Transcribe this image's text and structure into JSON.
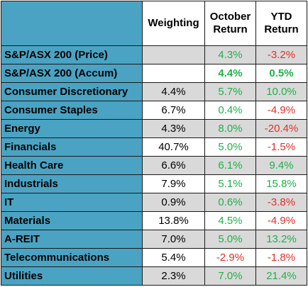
{
  "columns": {
    "weighting": "Weighting",
    "october": "October Return",
    "ytd": "YTD Return"
  },
  "colors": {
    "header_fill": "#4aa3c3",
    "positive": "#1fb14a",
    "negative": "#e0312b",
    "shade": "#d9d9d9"
  },
  "rows": [
    {
      "name": "S&P/ASX 200 (Price)",
      "weighting": "",
      "october": "4.3%",
      "ytd": "-3.2%"
    },
    {
      "name": "S&P/ASX 200 (Accum)",
      "weighting": "",
      "october": "4.4%",
      "ytd": "0.5%"
    },
    {
      "name": "Consumer Discretionary",
      "weighting": "4.4%",
      "october": "5.7%",
      "ytd": "10.0%"
    },
    {
      "name": "Consumer Staples",
      "weighting": "6.7%",
      "october": "0.4%",
      "ytd": "-4.9%"
    },
    {
      "name": "Energy",
      "weighting": "4.3%",
      "october": "8.0%",
      "ytd": "-20.4%"
    },
    {
      "name": "Financials",
      "weighting": "40.7%",
      "october": "5.0%",
      "ytd": "-1.5%"
    },
    {
      "name": "Health Care",
      "weighting": "6.6%",
      "october": "6.1%",
      "ytd": "9.4%"
    },
    {
      "name": "Industrials",
      "weighting": "7.9%",
      "october": "5.1%",
      "ytd": "15.8%"
    },
    {
      "name": "IT",
      "weighting": "0.9%",
      "october": "0.6%",
      "ytd": "-3.8%"
    },
    {
      "name": "Materials",
      "weighting": "13.8%",
      "october": "4.5%",
      "ytd": "-4.9%"
    },
    {
      "name": "A-REIT",
      "weighting": "7.0%",
      "october": "5.0%",
      "ytd": "13.2%"
    },
    {
      "name": "Telecommunications",
      "weighting": "5.4%",
      "october": "-2.9%",
      "ytd": "-1.8%"
    },
    {
      "name": "Utilities",
      "weighting": "2.3%",
      "october": "7.0%",
      "ytd": "21.4%"
    }
  ]
}
